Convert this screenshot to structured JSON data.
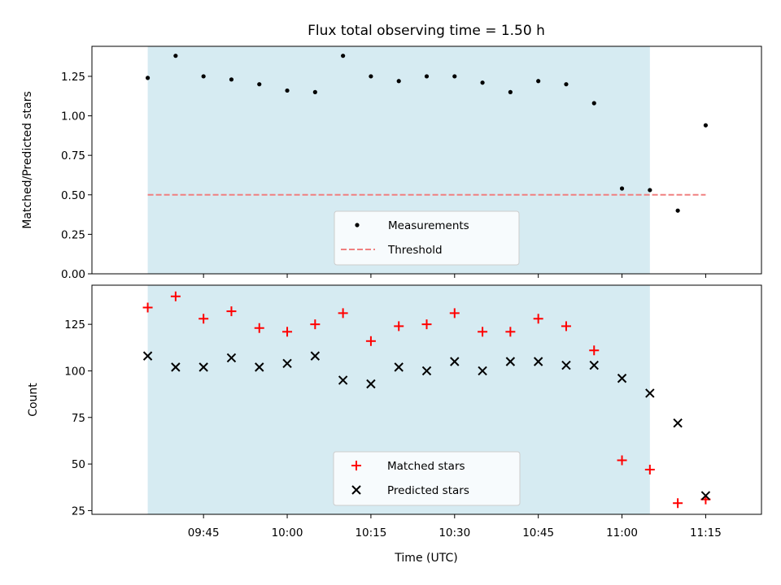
{
  "chart_data": {
    "type": "scatter",
    "title": "Flux total observing time = 1.50 h",
    "xlabel": "Time (UTC)",
    "x_ticks": [
      "09:45",
      "10:00",
      "10:15",
      "10:30",
      "10:45",
      "11:00",
      "11:15"
    ],
    "x_range_minutes": [
      565,
      685
    ],
    "shaded_region_minutes": [
      575,
      665
    ],
    "shade_color": "#add8e6",
    "grid": false,
    "panels": [
      {
        "ylabel": "Matched/Predicted stars",
        "ylim": [
          0,
          1.44
        ],
        "y_ticks": [
          "0.00",
          "0.25",
          "0.50",
          "0.75",
          "1.00",
          "1.25"
        ],
        "legend_position": "lower-center",
        "series": [
          {
            "name": "Measurements",
            "marker": "dot",
            "color": "#000000",
            "x": [
              575,
              580,
              585,
              590,
              595,
              600,
              605,
              610,
              615,
              620,
              625,
              630,
              635,
              640,
              645,
              650,
              655,
              660,
              665,
              670,
              675
            ],
            "y": [
              1.24,
              1.38,
              1.25,
              1.23,
              1.2,
              1.16,
              1.15,
              1.38,
              1.25,
              1.22,
              1.25,
              1.25,
              1.21,
              1.15,
              1.22,
              1.2,
              1.08,
              0.54,
              0.53,
              0.4,
              0.94
            ]
          }
        ],
        "threshold": {
          "name": "Threshold",
          "y": 0.5,
          "x_range": [
            575,
            675
          ],
          "color": "#f08080"
        }
      },
      {
        "ylabel": "Count",
        "ylim": [
          23,
          146
        ],
        "y_ticks": [
          "25",
          "50",
          "75",
          "100",
          "125"
        ],
        "legend_position": "lower-center",
        "series": [
          {
            "name": "Matched stars",
            "marker": "plus",
            "color": "#ff0000",
            "x": [
              575,
              580,
              585,
              590,
              595,
              600,
              605,
              610,
              615,
              620,
              625,
              630,
              635,
              640,
              645,
              650,
              655,
              660,
              665,
              670,
              675
            ],
            "y": [
              134,
              140,
              128,
              132,
              123,
              121,
              125,
              131,
              116,
              124,
              125,
              131,
              121,
              121,
              128,
              124,
              111,
              52,
              47,
              29,
              31
            ]
          },
          {
            "name": "Predicted stars",
            "marker": "x",
            "color": "#000000",
            "x": [
              575,
              580,
              585,
              590,
              595,
              600,
              605,
              610,
              615,
              620,
              625,
              630,
              635,
              640,
              645,
              650,
              655,
              660,
              665,
              670,
              675
            ],
            "y": [
              108,
              102,
              102,
              107,
              102,
              104,
              108,
              95,
              93,
              102,
              100,
              105,
              100,
              105,
              105,
              103,
              103,
              96,
              88,
              72,
              33
            ]
          }
        ]
      }
    ]
  }
}
